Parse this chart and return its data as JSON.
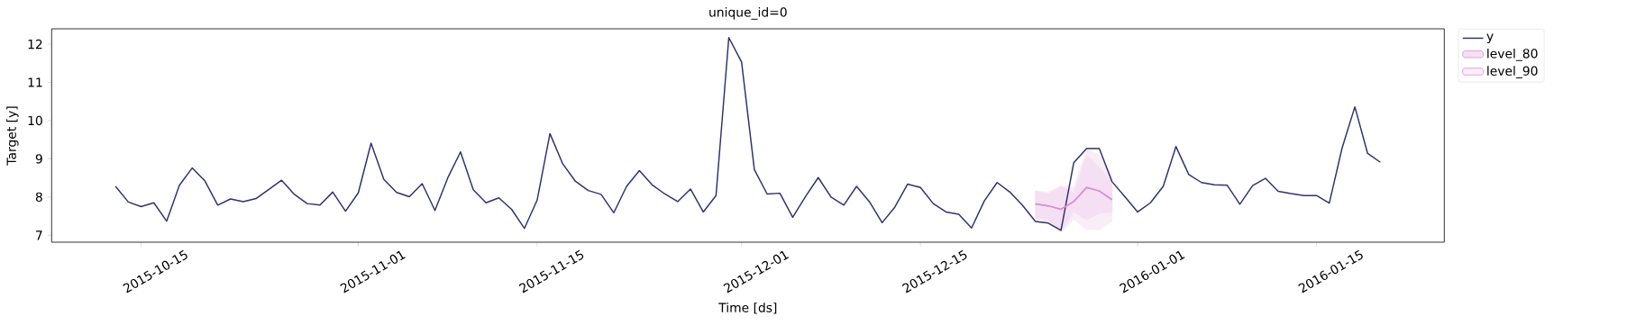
{
  "chart_data": {
    "type": "line",
    "title": "unique_id=0",
    "xlabel": "Time [ds]",
    "ylabel": "Target [y]",
    "xlim": [
      "2015-10-08",
      "2016-01-25"
    ],
    "ylim": [
      6.82,
      12.4
    ],
    "xticks": [
      "2015-10-15",
      "2015-11-01",
      "2015-11-15",
      "2015-12-01",
      "2015-12-15",
      "2016-01-01",
      "2016-01-15"
    ],
    "yticks": [
      7,
      8,
      9,
      10,
      11,
      12
    ],
    "legend": "top right",
    "series": [
      {
        "name": "y",
        "color": "#2e3172",
        "x": [
          "2015-10-13",
          "2015-10-14",
          "2015-10-15",
          "2015-10-16",
          "2015-10-17",
          "2015-10-18",
          "2015-10-19",
          "2015-10-20",
          "2015-10-21",
          "2015-10-22",
          "2015-10-23",
          "2015-10-24",
          "2015-10-25",
          "2015-10-26",
          "2015-10-27",
          "2015-10-28",
          "2015-10-29",
          "2015-10-30",
          "2015-10-31",
          "2015-11-01",
          "2015-11-02",
          "2015-11-03",
          "2015-11-04",
          "2015-11-05",
          "2015-11-06",
          "2015-11-07",
          "2015-11-08",
          "2015-11-09",
          "2015-11-10",
          "2015-11-11",
          "2015-11-12",
          "2015-11-13",
          "2015-11-14",
          "2015-11-15",
          "2015-11-16",
          "2015-11-17",
          "2015-11-18",
          "2015-11-19",
          "2015-11-20",
          "2015-11-21",
          "2015-11-22",
          "2015-11-23",
          "2015-11-24",
          "2015-11-25",
          "2015-11-26",
          "2015-11-27",
          "2015-11-28",
          "2015-11-29",
          "2015-11-30",
          "2015-12-01",
          "2015-12-02",
          "2015-12-03",
          "2015-12-04",
          "2015-12-05",
          "2015-12-06",
          "2015-12-07",
          "2015-12-08",
          "2015-12-09",
          "2015-12-10",
          "2015-12-11",
          "2015-12-12",
          "2015-12-13",
          "2015-12-14",
          "2015-12-15",
          "2015-12-16",
          "2015-12-17",
          "2015-12-18",
          "2015-12-19",
          "2015-12-20",
          "2015-12-21",
          "2015-12-22",
          "2015-12-23",
          "2015-12-24",
          "2015-12-25",
          "2015-12-26",
          "2015-12-27",
          "2015-12-28",
          "2015-12-29",
          "2015-12-30",
          "2015-12-31",
          "2016-01-01",
          "2016-01-02",
          "2016-01-03",
          "2016-01-04",
          "2016-01-05",
          "2016-01-06",
          "2016-01-07",
          "2016-01-08",
          "2016-01-09",
          "2016-01-10",
          "2016-01-11",
          "2016-01-12",
          "2016-01-13",
          "2016-01-14",
          "2016-01-15",
          "2016-01-16",
          "2016-01-17",
          "2016-01-18",
          "2016-01-19",
          "2016-01-20"
        ],
        "values": [
          8.28,
          7.87,
          7.75,
          7.85,
          7.37,
          8.31,
          8.76,
          8.42,
          7.79,
          7.95,
          7.88,
          7.96,
          8.2,
          8.44,
          8.07,
          7.83,
          7.79,
          8.13,
          7.63,
          8.11,
          9.41,
          8.46,
          8.12,
          8.01,
          8.35,
          7.65,
          8.5,
          9.18,
          8.19,
          7.85,
          7.98,
          7.68,
          7.18,
          7.92,
          9.66,
          8.87,
          8.41,
          8.17,
          8.07,
          7.59,
          8.28,
          8.69,
          8.32,
          8.08,
          7.88,
          8.21,
          7.61,
          8.04,
          12.17,
          11.53,
          8.72,
          8.08,
          8.1,
          7.47,
          8.01,
          8.51,
          8.0,
          7.79,
          8.28,
          7.88,
          7.33,
          7.74,
          8.34,
          8.25,
          7.83,
          7.61,
          7.55,
          7.19,
          7.9,
          8.38,
          8.13,
          7.78,
          7.36,
          7.32,
          7.13,
          8.9,
          9.27,
          9.27,
          8.4,
          8.01,
          7.61,
          7.85,
          8.28,
          9.32,
          8.59,
          8.38,
          8.32,
          8.31,
          7.81,
          8.3,
          8.49,
          8.15,
          8.09,
          8.04,
          8.04,
          7.84,
          9.28,
          10.36,
          9.14,
          8.91
        ]
      },
      {
        "name": "level_80",
        "color": "#d98ed4",
        "x": [
          "2015-12-24",
          "2015-12-25",
          "2015-12-26",
          "2015-12-27",
          "2015-12-28",
          "2015-12-29",
          "2015-12-30"
        ],
        "values": [
          7.82,
          7.77,
          7.68,
          7.88,
          8.25,
          8.16,
          7.93
        ],
        "lower": [
          7.45,
          7.4,
          7.1,
          7.61,
          7.4,
          7.57,
          7.6
        ],
        "upper": [
          8.16,
          8.08,
          8.28,
          8.11,
          9.1,
          8.78,
          8.39
        ]
      },
      {
        "name": "level_90",
        "color": "#d98ed4",
        "x": [
          "2015-12-24",
          "2015-12-25",
          "2015-12-26",
          "2015-12-27",
          "2015-12-28",
          "2015-12-29",
          "2015-12-30"
        ],
        "values": [
          7.82,
          7.77,
          7.68,
          7.88,
          8.25,
          8.16,
          7.93
        ],
        "lower": [
          7.4,
          7.34,
          7.07,
          7.41,
          7.15,
          7.14,
          7.36
        ],
        "upper": [
          8.17,
          8.13,
          8.3,
          8.27,
          9.26,
          9.1,
          8.59
        ]
      }
    ]
  }
}
